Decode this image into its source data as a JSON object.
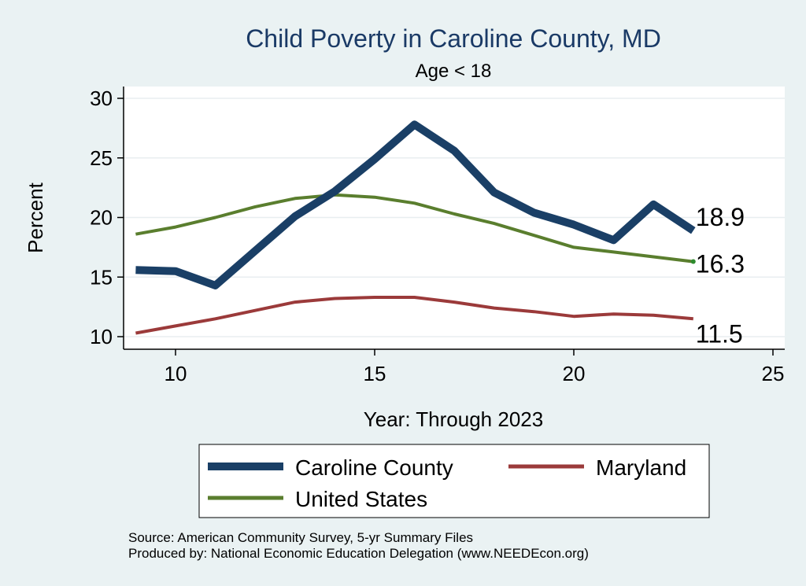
{
  "chart_data": {
    "type": "line",
    "title": "Child Poverty in Caroline County, MD",
    "subtitle": "Age < 18",
    "xlabel": "Year: Through 2023",
    "ylabel": "Percent",
    "xlim": [
      9,
      25
    ],
    "ylim": [
      10,
      30
    ],
    "xticks": [
      10,
      15,
      20,
      25
    ],
    "yticks": [
      10,
      15,
      20,
      25,
      30
    ],
    "grid": true,
    "legend_position": "bottom",
    "series": [
      {
        "name": "Caroline County",
        "color": "#1a3f66",
        "x": [
          9,
          10,
          11,
          12,
          13,
          14,
          15,
          16,
          17,
          18,
          19,
          20,
          21,
          22,
          23
        ],
        "y": [
          15.6,
          15.5,
          14.3,
          17.2,
          20.1,
          22.2,
          24.9,
          27.8,
          25.6,
          22.1,
          20.4,
          19.4,
          18.1,
          21.1,
          18.9
        ],
        "end_label": "18.9"
      },
      {
        "name": "Maryland",
        "color": "#9b3a3a",
        "x": [
          9,
          10,
          11,
          12,
          13,
          14,
          15,
          16,
          17,
          18,
          19,
          20,
          21,
          22,
          23
        ],
        "y": [
          10.3,
          10.9,
          11.5,
          12.2,
          12.9,
          13.2,
          13.3,
          13.3,
          12.9,
          12.4,
          12.1,
          11.7,
          11.9,
          11.8,
          11.5
        ],
        "end_label": "11.5"
      },
      {
        "name": "United States",
        "color": "#5a7e2e",
        "x": [
          9,
          10,
          11,
          12,
          13,
          14,
          15,
          16,
          17,
          18,
          19,
          20,
          21,
          22,
          23
        ],
        "y": [
          18.6,
          19.2,
          20.0,
          20.9,
          21.6,
          21.9,
          21.7,
          21.2,
          20.3,
          19.5,
          18.5,
          17.5,
          17.1,
          16.7,
          16.3
        ],
        "end_label": "16.3"
      }
    ],
    "notes": [
      "Source: American Community Survey, 5-yr Summary Files",
      "Produced by: National Economic Education Delegation (www.NEEDEcon.org)"
    ]
  }
}
